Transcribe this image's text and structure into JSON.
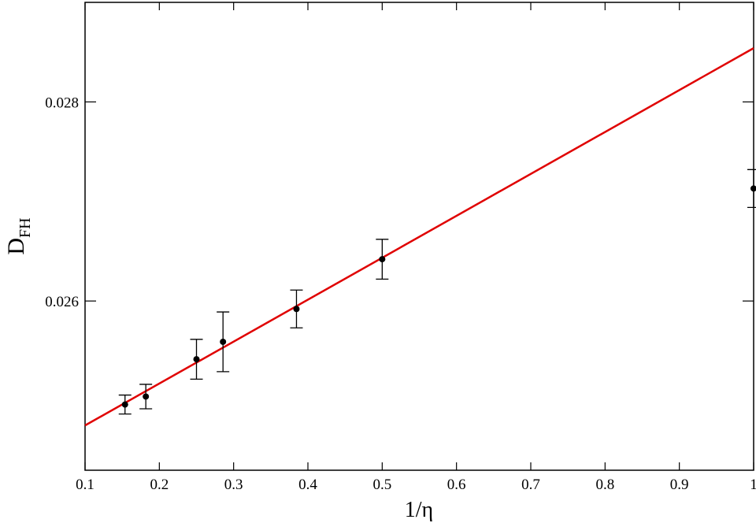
{
  "chart_data": {
    "type": "scatter",
    "xlabel": "1/η",
    "ylabel": {
      "main": "D",
      "sub": "FH"
    },
    "xlim": [
      0.1,
      1.0
    ],
    "xticks": [
      0.1,
      0.2,
      0.3,
      0.4,
      0.5,
      0.6,
      0.7,
      0.8,
      0.9,
      1
    ],
    "ylim": [
      0.0243,
      0.029
    ],
    "yticks": [
      0.026,
      0.028
    ],
    "points": {
      "color": "#000000",
      "x": [
        0.1538,
        0.1818,
        0.25,
        0.2857,
        0.3846,
        0.5,
        1.0
      ],
      "values": [
        0.02496,
        0.02504,
        0.025415,
        0.02559,
        0.02592,
        0.02642,
        0.02713
      ],
      "errors": [
        9.5e-05,
        0.000123,
        0.0002,
        0.0003,
        0.00019,
        0.0002,
        0.00019
      ]
    },
    "fit": {
      "color": "#e00000",
      "x": [
        0.1,
        1.0
      ],
      "values": [
        0.02475,
        0.02854
      ]
    }
  }
}
